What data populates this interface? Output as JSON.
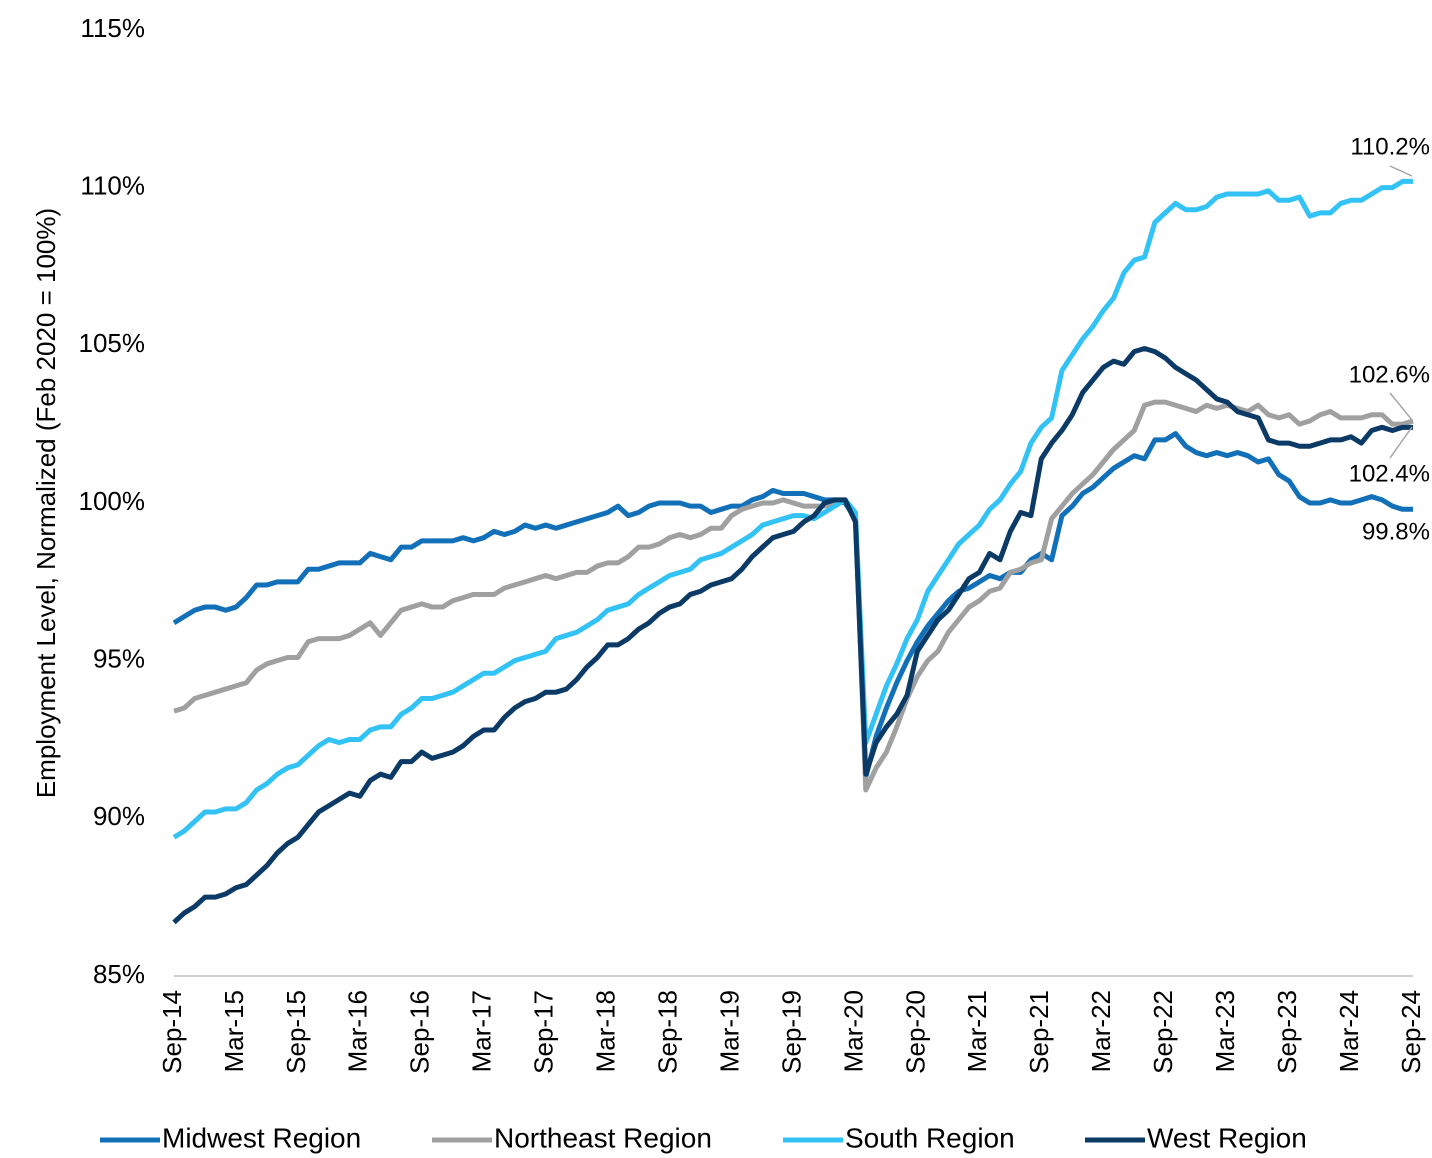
{
  "chart_data": {
    "type": "line",
    "y_axis_label": "Employment Level, Normalized (Feb 2020 = 100%)",
    "categories": [
      "Sep-14",
      null,
      null,
      null,
      null,
      null,
      "Mar-15",
      null,
      null,
      null,
      null,
      null,
      "Sep-15",
      null,
      null,
      null,
      null,
      null,
      "Mar-16",
      null,
      null,
      null,
      null,
      null,
      "Sep-16",
      null,
      null,
      null,
      null,
      null,
      "Mar-17",
      null,
      null,
      null,
      null,
      null,
      "Sep-17",
      null,
      null,
      null,
      null,
      null,
      "Mar-18",
      null,
      null,
      null,
      null,
      null,
      "Sep-18",
      null,
      null,
      null,
      null,
      null,
      "Mar-19",
      null,
      null,
      null,
      null,
      null,
      "Sep-19",
      null,
      null,
      null,
      null,
      null,
      "Mar-20",
      null,
      null,
      null,
      null,
      null,
      "Sep-20",
      null,
      null,
      null,
      null,
      null,
      "Mar-21",
      null,
      null,
      null,
      null,
      null,
      "Sep-21",
      null,
      null,
      null,
      null,
      null,
      "Mar-22",
      null,
      null,
      null,
      null,
      null,
      "Sep-22",
      null,
      null,
      null,
      null,
      null,
      "Mar-23",
      null,
      null,
      null,
      null,
      null,
      "Sep-23",
      null,
      null,
      null,
      null,
      null,
      "Mar-24",
      null,
      null,
      null,
      null,
      null,
      "Sep-24"
    ],
    "series": [
      {
        "name": "Midwest Region",
        "color": "#1170b8",
        "values": [
          96.2,
          96.4,
          96.6,
          96.7,
          96.7,
          96.6,
          96.7,
          97.0,
          97.4,
          97.4,
          97.5,
          97.5,
          97.5,
          97.9,
          97.9,
          98.0,
          98.1,
          98.1,
          98.1,
          98.4,
          98.3,
          98.2,
          98.6,
          98.6,
          98.8,
          98.8,
          98.8,
          98.8,
          98.9,
          98.8,
          98.9,
          99.1,
          99.0,
          99.1,
          99.3,
          99.2,
          99.3,
          99.2,
          99.3,
          99.4,
          99.5,
          99.6,
          99.7,
          99.9,
          99.6,
          99.7,
          99.9,
          100.0,
          100.0,
          100.0,
          99.9,
          99.9,
          99.7,
          99.8,
          99.9,
          99.9,
          100.1,
          100.2,
          100.4,
          100.3,
          100.3,
          100.3,
          100.2,
          100.1,
          100.1,
          100.0,
          99.5,
          91.3,
          92.6,
          93.5,
          94.3,
          95.0,
          95.6,
          96.1,
          96.5,
          96.9,
          97.2,
          97.3,
          97.5,
          97.7,
          97.6,
          97.8,
          97.8,
          98.2,
          98.4,
          98.2,
          99.6,
          99.9,
          100.3,
          100.5,
          100.8,
          101.1,
          101.3,
          101.5,
          101.4,
          102.0,
          102.0,
          102.2,
          101.8,
          101.6,
          101.5,
          101.6,
          101.5,
          101.6,
          101.5,
          101.3,
          101.4,
          100.9,
          100.7,
          100.2,
          100.0,
          100.0,
          100.1,
          100.0,
          100.0,
          100.1,
          100.2,
          100.1,
          99.9,
          99.8,
          99.8
        ]
      },
      {
        "name": "Northeast Region",
        "color": "#a0a0a0",
        "values": [
          93.4,
          93.5,
          93.8,
          93.9,
          94.0,
          94.1,
          94.2,
          94.3,
          94.7,
          94.9,
          95.0,
          95.1,
          95.1,
          95.6,
          95.7,
          95.7,
          95.7,
          95.8,
          96.0,
          96.2,
          95.8,
          96.2,
          96.6,
          96.7,
          96.8,
          96.7,
          96.7,
          96.9,
          97.0,
          97.1,
          97.1,
          97.1,
          97.3,
          97.4,
          97.5,
          97.6,
          97.7,
          97.6,
          97.7,
          97.8,
          97.8,
          98.0,
          98.1,
          98.1,
          98.3,
          98.6,
          98.6,
          98.7,
          98.9,
          99.0,
          98.9,
          99.0,
          99.2,
          99.2,
          99.6,
          99.8,
          99.9,
          100.0,
          100.0,
          100.1,
          100.0,
          99.9,
          99.9,
          99.9,
          100.0,
          100.1,
          99.6,
          90.9,
          91.6,
          92.1,
          92.9,
          93.8,
          94.5,
          95.0,
          95.3,
          95.9,
          96.3,
          96.7,
          96.9,
          97.2,
          97.3,
          97.8,
          97.9,
          98.1,
          98.2,
          99.5,
          99.9,
          100.3,
          100.6,
          100.9,
          101.3,
          101.7,
          102.0,
          102.3,
          103.1,
          103.2,
          103.2,
          103.1,
          103.0,
          102.9,
          103.1,
          103.0,
          103.1,
          103.0,
          102.9,
          103.1,
          102.8,
          102.7,
          102.8,
          102.5,
          102.6,
          102.8,
          102.9,
          102.7,
          102.7,
          102.7,
          102.8,
          102.8,
          102.5,
          102.5,
          102.6
        ]
      },
      {
        "name": "South Region",
        "color": "#33c2f5",
        "values": [
          89.4,
          89.6,
          89.9,
          90.2,
          90.2,
          90.3,
          90.3,
          90.5,
          90.9,
          91.1,
          91.4,
          91.6,
          91.7,
          92.0,
          92.3,
          92.5,
          92.4,
          92.5,
          92.5,
          92.8,
          92.9,
          92.9,
          93.3,
          93.5,
          93.8,
          93.8,
          93.9,
          94.0,
          94.2,
          94.4,
          94.6,
          94.6,
          94.8,
          95.0,
          95.1,
          95.2,
          95.3,
          95.7,
          95.8,
          95.9,
          96.1,
          96.3,
          96.6,
          96.7,
          96.8,
          97.1,
          97.3,
          97.5,
          97.7,
          97.8,
          97.9,
          98.2,
          98.3,
          98.4,
          98.6,
          98.8,
          99.0,
          99.3,
          99.4,
          99.5,
          99.6,
          99.6,
          99.5,
          99.7,
          99.9,
          100.1,
          99.7,
          92.4,
          93.3,
          94.2,
          94.9,
          95.7,
          96.3,
          97.2,
          97.7,
          98.2,
          98.7,
          99.0,
          99.3,
          99.8,
          100.1,
          100.6,
          101.0,
          101.9,
          102.4,
          102.7,
          104.2,
          104.7,
          105.2,
          105.6,
          106.1,
          106.5,
          107.3,
          107.7,
          107.8,
          108.9,
          109.2,
          109.5,
          109.3,
          109.3,
          109.4,
          109.7,
          109.8,
          109.8,
          109.8,
          109.8,
          109.9,
          109.6,
          109.6,
          109.7,
          109.1,
          109.2,
          109.2,
          109.5,
          109.6,
          109.6,
          109.8,
          110.0,
          110.0,
          110.2,
          110.2
        ]
      },
      {
        "name": "West Region",
        "color": "#0b3a66",
        "values": [
          86.7,
          87.0,
          87.2,
          87.5,
          87.5,
          87.6,
          87.8,
          87.9,
          88.2,
          88.5,
          88.9,
          89.2,
          89.4,
          89.8,
          90.2,
          90.4,
          90.6,
          90.8,
          90.7,
          91.2,
          91.4,
          91.3,
          91.8,
          91.8,
          92.1,
          91.9,
          92.0,
          92.1,
          92.3,
          92.6,
          92.8,
          92.8,
          93.2,
          93.5,
          93.7,
          93.8,
          94.0,
          94.0,
          94.1,
          94.4,
          94.8,
          95.1,
          95.5,
          95.5,
          95.7,
          96.0,
          96.2,
          96.5,
          96.7,
          96.8,
          97.1,
          97.2,
          97.4,
          97.5,
          97.6,
          97.9,
          98.3,
          98.6,
          98.9,
          99.0,
          99.1,
          99.4,
          99.6,
          100.0,
          100.1,
          100.1,
          99.4,
          91.4,
          92.4,
          92.9,
          93.3,
          93.9,
          95.3,
          95.8,
          96.3,
          96.6,
          97.1,
          97.6,
          97.8,
          98.4,
          98.2,
          99.1,
          99.7,
          99.6,
          101.4,
          101.9,
          102.3,
          102.8,
          103.5,
          103.9,
          104.3,
          104.5,
          104.4,
          104.8,
          104.9,
          104.8,
          104.6,
          104.3,
          104.1,
          103.9,
          103.6,
          103.3,
          103.2,
          102.9,
          102.8,
          102.7,
          102.0,
          101.9,
          101.9,
          101.8,
          101.8,
          101.9,
          102.0,
          102.0,
          102.1,
          101.9,
          102.3,
          102.4,
          102.3,
          102.4,
          102.4
        ]
      }
    ],
    "ylim": [
      85,
      115
    ],
    "yticks": [
      {
        "value": 85,
        "label": "85%"
      },
      {
        "value": 90,
        "label": "90%"
      },
      {
        "value": 95,
        "label": "95%"
      },
      {
        "value": 100,
        "label": "100%"
      },
      {
        "value": 105,
        "label": "105%"
      },
      {
        "value": 110,
        "label": "110%"
      },
      {
        "value": 115,
        "label": "115%"
      }
    ],
    "grid": false,
    "legend": "bottom",
    "annotations": [
      "110.2%",
      "102.6%",
      "102.4%",
      "99.8%"
    ]
  }
}
